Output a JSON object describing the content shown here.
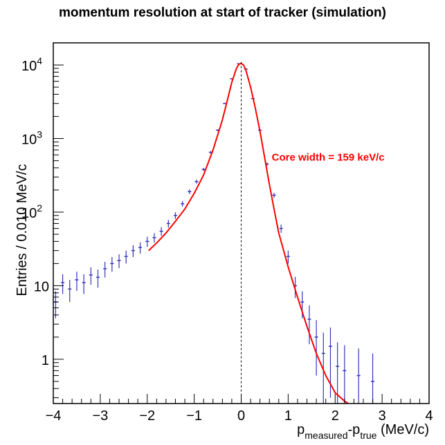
{
  "chart_data": {
    "type": "scatter",
    "title": "momentum resolution at start of tracker (simulation)",
    "ylabel": "Entries / 0.010 MeV/c",
    "xlabel": {
      "p1": "p",
      "sub1": "measured",
      "mid": "-p",
      "sub2": "true",
      "unit": " (MeV/c)"
    },
    "xlim": [
      -4,
      4
    ],
    "ylim": [
      0.25,
      20000
    ],
    "yscale": "log",
    "grid": false,
    "x_ticks": [
      {
        "value": -4,
        "label": "−4"
      },
      {
        "value": -3,
        "label": "−3"
      },
      {
        "value": -2,
        "label": "−2"
      },
      {
        "value": -1,
        "label": "−1"
      },
      {
        "value": 0,
        "label": "0"
      },
      {
        "value": 1,
        "label": "1"
      },
      {
        "value": 2,
        "label": "2"
      },
      {
        "value": 3,
        "label": "3"
      },
      {
        "value": 4,
        "label": "4"
      }
    ],
    "y_ticks": [
      {
        "value": 1,
        "label": "1"
      },
      {
        "value": 10,
        "label": "10"
      },
      {
        "value": 100,
        "label": "10",
        "exp": "2"
      },
      {
        "value": 1000,
        "label": "10",
        "exp": "3"
      },
      {
        "value": 10000,
        "label": "10",
        "exp": "4"
      }
    ],
    "reference_line": {
      "x": 0,
      "style": "dashed"
    },
    "fit_segments": [
      {
        "name": "fit-left",
        "color": "#ff0000",
        "x": [
          -1.97,
          -1.8,
          -1.6,
          -1.4,
          -1.2,
          -1.0,
          -0.8,
          -0.6,
          -0.4,
          -0.3,
          -0.2,
          -0.1,
          -0.05,
          0.0
        ],
        "y": [
          30,
          38,
          52,
          75,
          110,
          180,
          320,
          700,
          1800,
          3200,
          5800,
          9000,
          10200,
          10500
        ]
      },
      {
        "name": "fit-right",
        "color": "#ff0000",
        "x": [
          0.0,
          0.05,
          0.1,
          0.2,
          0.3,
          0.4,
          0.5,
          0.6,
          0.7,
          0.8,
          1.0,
          1.2,
          1.4,
          1.6,
          1.8,
          2.0,
          2.2,
          2.28
        ],
        "y": [
          10500,
          10000,
          8500,
          5000,
          2600,
          1250,
          550,
          240,
          110,
          52,
          18,
          7,
          2.8,
          1.2,
          0.6,
          0.35,
          0.27,
          0.25
        ]
      }
    ],
    "data_series": {
      "name": "data",
      "color": "#3333bb",
      "x": [
        -3.95,
        -3.8,
        -3.65,
        -3.5,
        -3.35,
        -3.2,
        -3.05,
        -2.9,
        -2.75,
        -2.6,
        -2.45,
        -2.3,
        -2.15,
        -2.0,
        -1.85,
        -1.7,
        -1.55,
        -1.4,
        -1.25,
        -1.1,
        -0.95,
        -0.8,
        -0.65,
        -0.5,
        -0.35,
        -0.2,
        -0.05,
        0.1,
        0.25,
        0.4,
        0.55,
        0.7,
        0.85,
        1.0,
        1.15,
        1.3,
        1.45,
        1.6,
        1.75,
        1.9,
        2.05,
        2.2,
        2.5,
        2.8
      ],
      "y": [
        6,
        11,
        9,
        12,
        11,
        14,
        13,
        17,
        20,
        22,
        25,
        30,
        33,
        40,
        45,
        55,
        70,
        90,
        130,
        190,
        260,
        380,
        650,
        1300,
        3000,
        6500,
        10400,
        8800,
        3500,
        1300,
        450,
        170,
        60,
        25,
        10,
        6,
        3.5,
        2,
        1.2,
        1.5,
        0.8,
        0.7,
        0.6,
        0.5
      ],
      "err": [
        2.4,
        3.3,
        3,
        3.5,
        3.3,
        3.7,
        3.6,
        4.1,
        4.5,
        4.7,
        5,
        5.5,
        5.7,
        6.3,
        6.7,
        7.4,
        8.4,
        9.5,
        11.4,
        13.8,
        16,
        19.5,
        25.5,
        36,
        55,
        80,
        102,
        94,
        59,
        36,
        21,
        13,
        7.7,
        5,
        3.2,
        2.4,
        1.9,
        1.4,
        1.1,
        1.2,
        0.9,
        0.85,
        0.8,
        0.7
      ]
    },
    "annotations": [
      {
        "text": "Core width = 159 keV/c",
        "color": "#ff0000",
        "x": 0.65,
        "y": 500
      }
    ]
  }
}
